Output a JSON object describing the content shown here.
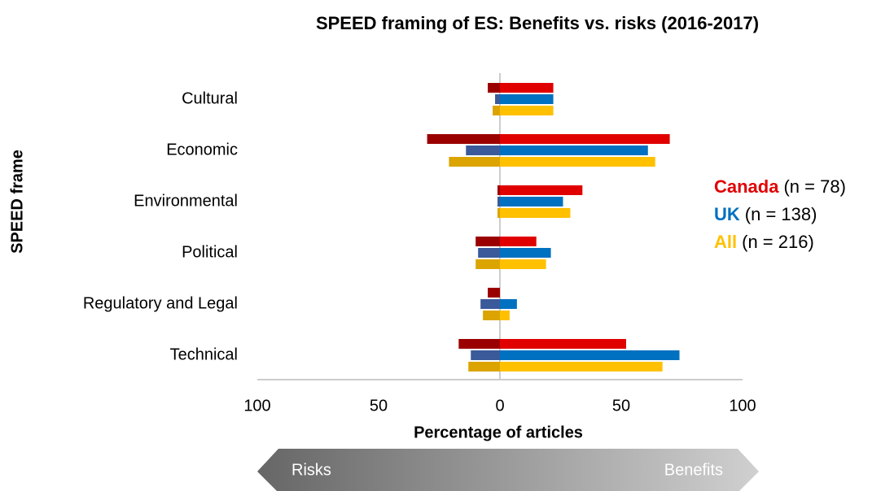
{
  "chart_data": {
    "type": "bar",
    "orientation": "horizontal",
    "title": "SPEED framing of ES: Benefits vs. risks (2016-2017)",
    "y_label": "SPEED frame",
    "x_label": "Percentage of articles",
    "arrow_labels": [
      "Risks",
      "Benefits"
    ],
    "categories": [
      "Cultural",
      "Economic",
      "Environmental",
      "Political",
      "Regulatory and Legal",
      "Technical"
    ],
    "series": [
      {
        "name": "Canada",
        "label": "(n = 78)",
        "color": "#e00000",
        "risk_color": "#9b0000",
        "values": [
          22,
          70,
          34,
          15,
          0,
          52
        ],
        "risk_values": [
          -5,
          -30,
          -1,
          -10,
          -5,
          -17
        ]
      },
      {
        "name": "UK",
        "label": "(n = 138)",
        "color": "#0070c0",
        "risk_color": "#3a5a9a",
        "values": [
          22,
          61,
          26,
          21,
          7,
          74
        ],
        "risk_values": [
          -2,
          -14,
          -1,
          -9,
          -8,
          -12
        ]
      },
      {
        "name": "All",
        "label": "(n = 216)",
        "color": "#ffc000",
        "risk_color": "#dba400",
        "values": [
          22,
          64,
          29,
          19,
          4,
          67
        ],
        "risk_values": [
          -3,
          -21,
          -1,
          -10,
          -7,
          -13
        ]
      }
    ],
    "xlim": [
      -100,
      100
    ],
    "xticks": [
      {
        "value": -100,
        "label": "100"
      },
      {
        "value": -50,
        "label": "50"
      },
      0,
      50,
      100
    ]
  }
}
